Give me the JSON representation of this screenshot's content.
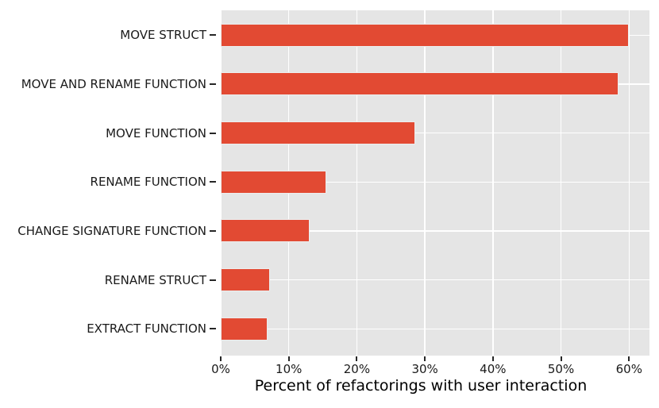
{
  "chart_data": {
    "type": "bar",
    "orientation": "horizontal",
    "title": "",
    "xlabel": "Percent of refactorings with user interaction",
    "ylabel": "",
    "categories": [
      "MOVE STRUCT",
      "MOVE AND RENAME FUNCTION",
      "MOVE FUNCTION",
      "RENAME FUNCTION",
      "CHANGE SIGNATURE FUNCTION",
      "RENAME STRUCT",
      "EXTRACT FUNCTION"
    ],
    "values": [
      60.0,
      58.4,
      28.6,
      15.5,
      13.1,
      7.2,
      6.9
    ],
    "value_unit": "%",
    "x_ticks": [
      {
        "value": 0,
        "label": "0%"
      },
      {
        "value": 10,
        "label": "10%"
      },
      {
        "value": 20,
        "label": "20%"
      },
      {
        "value": 30,
        "label": "30%"
      },
      {
        "value": 40,
        "label": "40%"
      },
      {
        "value": 50,
        "label": "50%"
      },
      {
        "value": 60,
        "label": "60%"
      }
    ],
    "xlim": [
      0,
      63
    ],
    "grid": true,
    "legend": false,
    "colors": {
      "bar_fill": "#e24a33",
      "bar_edge": "#ededed",
      "plot_background": "#e5e5e5",
      "grid_line": "#ffffff",
      "tick_mark": "#262626",
      "text": "#1a1a1a",
      "figure_background": "#ffffff"
    }
  }
}
